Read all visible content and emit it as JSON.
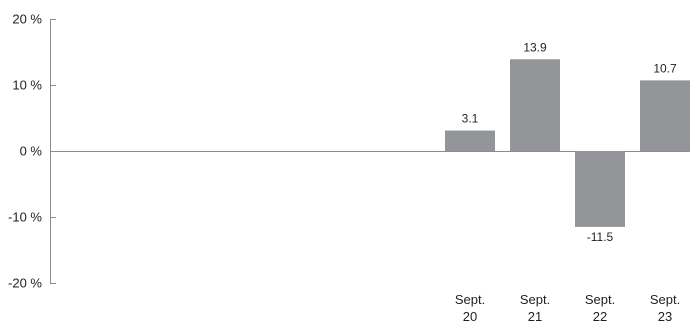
{
  "chart_data": {
    "type": "bar",
    "categories": [
      "Sept. 20",
      "Sept. 21",
      "Sept. 22",
      "Sept. 23"
    ],
    "values": [
      3.1,
      13.9,
      -11.5,
      10.7
    ],
    "ylim": [
      -20,
      20
    ],
    "y_ticks": [
      20,
      10,
      0,
      -10,
      -20
    ],
    "y_tick_labels": [
      "20 %",
      "10 %",
      "0 %",
      "-10 %",
      "-20 %"
    ],
    "grid": false,
    "bar_color": "#939598",
    "axis_color": "#8c8c8c",
    "text_color": "#231f20"
  }
}
